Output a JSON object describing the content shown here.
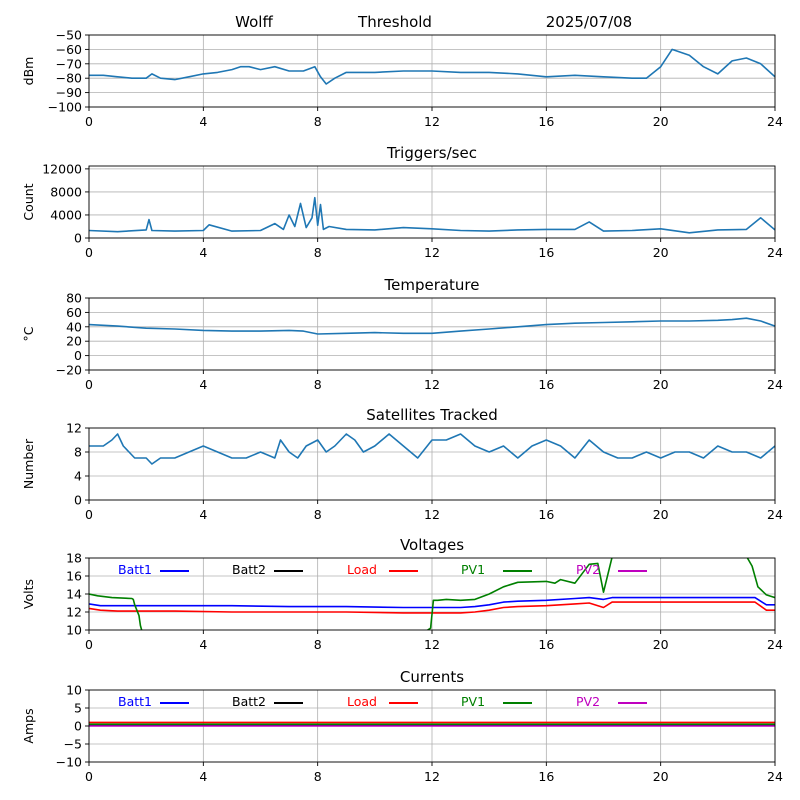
{
  "header": {
    "station": "Wolff",
    "mode": "Threshold",
    "date": "2025/07/08"
  },
  "chart_data": [
    {
      "type": "line",
      "id": "signal",
      "title": "",
      "ylabel": "dBm",
      "xlim": [
        0,
        24
      ],
      "ylim": [
        -100,
        -50
      ],
      "xticks": [
        "0",
        "4",
        "8",
        "12",
        "16",
        "20",
        "24"
      ],
      "yticks": [
        "−50",
        "−60",
        "−70",
        "−80",
        "−90",
        "−100"
      ],
      "grid": true,
      "series": [
        {
          "color": "#1f77b4",
          "x": [
            0,
            0.5,
            1,
            1.5,
            2,
            2.2,
            2.5,
            3,
            3.5,
            4,
            4.5,
            5,
            5.3,
            5.6,
            6,
            6.5,
            7,
            7.5,
            7.9,
            8.1,
            8.3,
            8.6,
            9,
            10,
            11,
            12,
            13,
            14,
            15,
            16,
            17,
            18,
            19,
            19.5,
            20,
            20.4,
            21,
            21.5,
            22,
            22.5,
            23,
            23.5,
            24
          ],
          "y": [
            -78,
            -78,
            -79,
            -80,
            -80,
            -77,
            -80,
            -81,
            -79,
            -77,
            -76,
            -74,
            -72,
            -72,
            -74,
            -72,
            -75,
            -75,
            -72,
            -79,
            -84,
            -80,
            -76,
            -76,
            -75,
            -75,
            -76,
            -76,
            -77,
            -79,
            -78,
            -79,
            -80,
            -80,
            -72,
            -60,
            -64,
            -72,
            -77,
            -68,
            -66,
            -70,
            -79
          ]
        }
      ]
    },
    {
      "type": "line",
      "id": "triggers",
      "title": "Triggers/sec",
      "ylabel": "Count",
      "xlim": [
        0,
        24
      ],
      "ylim": [
        0,
        12500
      ],
      "xticks": [
        "0",
        "4",
        "8",
        "12",
        "16",
        "20",
        "24"
      ],
      "yticks": [
        "0",
        "4000",
        "8000",
        "12000"
      ],
      "grid": true,
      "series": [
        {
          "color": "#1f77b4",
          "x": [
            0,
            1,
            2,
            2.1,
            2.2,
            3,
            4,
            4.2,
            5,
            6,
            6.5,
            6.8,
            7,
            7.2,
            7.4,
            7.6,
            7.8,
            7.9,
            8,
            8.1,
            8.2,
            8.4,
            9,
            10,
            11,
            12,
            13,
            14,
            15,
            16,
            17,
            17.5,
            18,
            19,
            20,
            21,
            22,
            23,
            23.5,
            24
          ],
          "y": [
            1300,
            1100,
            1400,
            3200,
            1300,
            1200,
            1300,
            2300,
            1200,
            1300,
            2500,
            1500,
            4000,
            2000,
            6000,
            1800,
            3500,
            7000,
            2200,
            5800,
            1500,
            2000,
            1500,
            1400,
            1800,
            1600,
            1300,
            1200,
            1400,
            1500,
            1500,
            2800,
            1200,
            1300,
            1600,
            900,
            1400,
            1500,
            3500,
            1400
          ]
        }
      ]
    },
    {
      "type": "line",
      "id": "temperature",
      "title": "Temperature",
      "ylabel": "°C",
      "xlim": [
        0,
        24
      ],
      "ylim": [
        -20,
        80
      ],
      "xticks": [
        "0",
        "4",
        "8",
        "12",
        "16",
        "20",
        "24"
      ],
      "yticks": [
        "−20",
        "0",
        "20",
        "40",
        "60",
        "80"
      ],
      "grid": true,
      "series": [
        {
          "color": "#1f77b4",
          "x": [
            0,
            1,
            2,
            3,
            4,
            5,
            6,
            7,
            7.5,
            8,
            9,
            10,
            11,
            12,
            13,
            14,
            15,
            16,
            17,
            18,
            19,
            20,
            21,
            22,
            22.5,
            23,
            23.5,
            24
          ],
          "y": [
            43,
            41,
            38,
            37,
            35,
            34,
            34,
            35,
            34,
            30,
            31,
            32,
            31,
            31,
            34,
            37,
            40,
            43,
            45,
            46,
            47,
            48,
            48,
            49,
            50,
            52,
            48,
            41
          ]
        }
      ]
    },
    {
      "type": "line",
      "id": "satellites",
      "title": "Satellites Tracked",
      "ylabel": "Number",
      "xlim": [
        0,
        24
      ],
      "ylim": [
        0,
        12
      ],
      "xticks": [
        "0",
        "4",
        "8",
        "12",
        "16",
        "20",
        "24"
      ],
      "yticks": [
        "0",
        "4",
        "8",
        "12"
      ],
      "grid": true,
      "series": [
        {
          "color": "#1f77b4",
          "x": [
            0,
            0.5,
            0.8,
            1,
            1.2,
            1.4,
            1.6,
            2,
            2.2,
            2.5,
            3,
            3.5,
            4,
            4.5,
            5,
            5.5,
            6,
            6.5,
            6.7,
            7,
            7.3,
            7.6,
            8,
            8.3,
            8.6,
            9,
            9.3,
            9.6,
            10,
            10.5,
            11,
            11.5,
            12,
            12.5,
            13,
            13.5,
            14,
            14.5,
            15,
            15.5,
            16,
            16.5,
            17,
            17.5,
            18,
            18.5,
            19,
            19.5,
            20,
            20.5,
            21,
            21.5,
            22,
            22.5,
            23,
            23.5,
            24
          ],
          "y": [
            9,
            9,
            10,
            11,
            9,
            8,
            7,
            7,
            6,
            7,
            7,
            8,
            9,
            8,
            7,
            7,
            8,
            7,
            10,
            8,
            7,
            9,
            10,
            8,
            9,
            11,
            10,
            8,
            9,
            11,
            9,
            7,
            10,
            10,
            11,
            9,
            8,
            9,
            7,
            9,
            10,
            9,
            7,
            10,
            8,
            7,
            7,
            8,
            7,
            8,
            8,
            7,
            9,
            8,
            8,
            7,
            9
          ]
        }
      ]
    },
    {
      "type": "line",
      "id": "voltages",
      "title": "Voltages",
      "ylabel": "Volts",
      "xlim": [
        0,
        24
      ],
      "ylim": [
        10,
        18
      ],
      "xticks": [
        "0",
        "4",
        "8",
        "12",
        "16",
        "20",
        "24"
      ],
      "yticks": [
        "10",
        "12",
        "14",
        "16",
        "18"
      ],
      "grid": true,
      "legend": "top, single row",
      "series": [
        {
          "name": "Batt1",
          "color": "#0000ff",
          "x": [
            0,
            0.4,
            1,
            3,
            5,
            7,
            9,
            11,
            13,
            13.5,
            14,
            14.5,
            15,
            16,
            17,
            17.5,
            18,
            18.3,
            19,
            21,
            23,
            23.3,
            23.7,
            24
          ],
          "y": [
            12.9,
            12.7,
            12.7,
            12.7,
            12.7,
            12.6,
            12.6,
            12.5,
            12.5,
            12.6,
            12.8,
            13.1,
            13.2,
            13.3,
            13.5,
            13.6,
            13.4,
            13.6,
            13.6,
            13.6,
            13.6,
            13.6,
            12.8,
            12.8
          ]
        },
        {
          "name": "Batt2",
          "color": "#000000",
          "x": [],
          "y": []
        },
        {
          "name": "Load",
          "color": "#ff0000",
          "x": [
            0,
            0.4,
            1,
            3,
            5,
            7,
            9,
            11,
            13,
            13.5,
            14,
            14.5,
            15,
            16,
            17,
            17.5,
            18,
            18.3,
            19,
            21,
            23,
            23.3,
            23.7,
            24
          ],
          "y": [
            12.4,
            12.2,
            12.1,
            12.1,
            12.0,
            12.0,
            12.0,
            11.9,
            11.9,
            12.0,
            12.2,
            12.5,
            12.6,
            12.7,
            12.9,
            13.0,
            12.5,
            13.1,
            13.1,
            13.1,
            13.1,
            13.1,
            12.2,
            12.2
          ]
        },
        {
          "name": "PV1",
          "color": "#008000",
          "x": [
            0,
            0.3,
            0.8,
            1.5,
            1.55,
            1.6,
            1.75,
            1.8,
            1.85,
            2,
            11.8,
            11.95,
            12.05,
            12.2,
            12.5,
            13,
            13.5,
            14,
            14.5,
            15,
            16,
            16.3,
            16.5,
            17,
            17.5,
            17.8,
            18,
            18.3,
            18.5,
            19,
            23,
            23.2,
            23.4,
            23.7,
            24
          ],
          "y": [
            14.0,
            13.8,
            13.6,
            13.5,
            13.4,
            12.8,
            11.6,
            10.5,
            9.9,
            9.9,
            9.9,
            10.2,
            13.3,
            13.3,
            13.4,
            13.3,
            13.4,
            14.0,
            14.8,
            15.3,
            15.4,
            15.2,
            15.6,
            15.2,
            17.3,
            17.4,
            14.2,
            18.1,
            18.2,
            18.2,
            18.2,
            17.1,
            14.8,
            13.9,
            13.6
          ]
        },
        {
          "name": "PV2",
          "color": "#bf00bf",
          "x": [],
          "y": []
        }
      ]
    },
    {
      "type": "line",
      "id": "currents",
      "title": "Currents",
      "ylabel": "Amps",
      "xlim": [
        0,
        24
      ],
      "ylim": [
        -10,
        10
      ],
      "xticks": [
        "0",
        "4",
        "8",
        "12",
        "16",
        "20",
        "24"
      ],
      "yticks": [
        "−10",
        "−5",
        "0",
        "5",
        "10"
      ],
      "grid": true,
      "legend": "top, single row",
      "series": [
        {
          "name": "Batt1",
          "color": "#0000ff",
          "x": [
            0,
            24
          ],
          "y": [
            0.3,
            0.3
          ]
        },
        {
          "name": "Batt2",
          "color": "#000000",
          "x": [
            0,
            24
          ],
          "y": [
            0.4,
            0.4
          ]
        },
        {
          "name": "Load",
          "color": "#ff0000",
          "x": [
            0,
            24
          ],
          "y": [
            1.0,
            1.0
          ]
        },
        {
          "name": "PV1",
          "color": "#008000",
          "x": [
            0,
            24
          ],
          "y": [
            0.5,
            0.5
          ]
        },
        {
          "name": "PV2",
          "color": "#bf00bf",
          "x": [
            0,
            24
          ],
          "y": [
            0.0,
            0.0
          ]
        }
      ]
    }
  ]
}
